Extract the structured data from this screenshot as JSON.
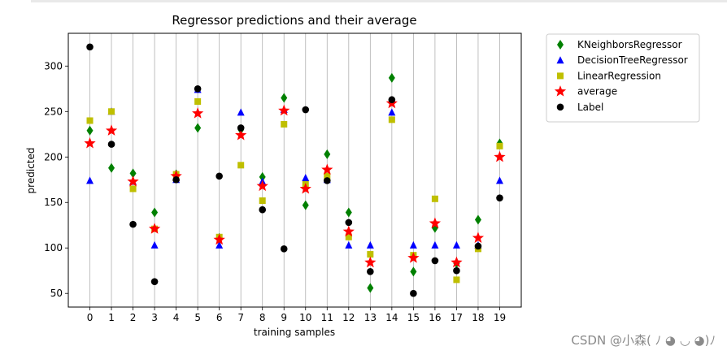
{
  "chart_data": {
    "type": "scatter",
    "title": "Regressor predictions and their average",
    "xlabel": "training samples",
    "ylabel": "predicted",
    "x": [
      0,
      1,
      2,
      3,
      4,
      5,
      6,
      7,
      8,
      9,
      10,
      11,
      12,
      13,
      14,
      15,
      16,
      17,
      18,
      19
    ],
    "xticks": [
      "0",
      "1",
      "2",
      "3",
      "4",
      "5",
      "6",
      "7",
      "8",
      "9",
      "10",
      "11",
      "12",
      "13",
      "14",
      "15",
      "16",
      "17",
      "18",
      "19"
    ],
    "yticks": [
      50,
      100,
      150,
      200,
      250,
      300
    ],
    "xlim": [
      -1,
      20
    ],
    "ylim": [
      35,
      336
    ],
    "grid": "vertical",
    "legend_position": "outside-right",
    "series": [
      {
        "name": "KNeighborsRegressor",
        "marker": "diamond",
        "color": "#008000",
        "values": [
          229,
          188,
          182,
          139,
          181,
          232,
          111,
          230,
          178,
          265,
          147,
          203,
          139,
          56,
          287,
          74,
          122,
          83,
          131,
          215
        ]
      },
      {
        "name": "DecisionTreeRegressor",
        "marker": "triangle",
        "color": "#0000ff",
        "values": [
          174,
          250,
          173,
          103,
          175,
          274,
          103,
          249,
          173,
          252,
          177,
          175,
          103,
          103,
          249,
          103,
          103,
          103,
          103,
          174
        ]
      },
      {
        "name": "LinearRegression",
        "marker": "square",
        "color": "#bfbf00",
        "values": [
          240,
          250,
          165,
          121,
          181,
          261,
          112,
          191,
          152,
          236,
          170,
          179,
          112,
          93,
          241,
          92,
          154,
          65,
          99,
          212
        ]
      },
      {
        "name": "average",
        "marker": "star",
        "color": "#ff0000",
        "values": [
          215,
          229,
          173,
          121,
          179,
          248,
          109,
          224,
          168,
          251,
          165,
          186,
          118,
          84,
          259,
          89,
          127,
          84,
          111,
          200
        ]
      },
      {
        "name": "Label",
        "marker": "circle",
        "color": "#000000",
        "values": [
          321,
          214,
          126,
          63,
          175,
          275,
          179,
          232,
          142,
          99,
          252,
          174,
          128,
          74,
          263,
          50,
          86,
          75,
          102,
          155
        ]
      }
    ]
  },
  "watermark": "CSDN @小森( ﾉ ◕ ◡ ◕)ﾉ"
}
